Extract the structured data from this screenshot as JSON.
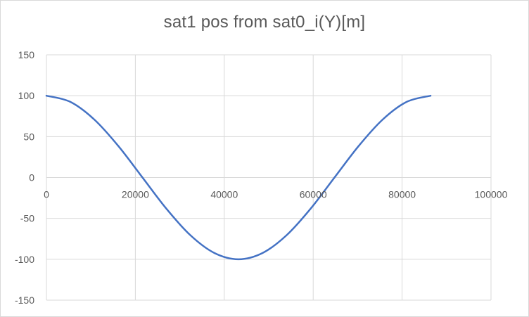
{
  "chart_data": {
    "type": "line",
    "title": "sat1 pos from sat0_i(Y)[m]",
    "xlim": [
      0,
      100000
    ],
    "ylim": [
      -150,
      150
    ],
    "x_ticks": [
      0,
      20000,
      40000,
      60000,
      80000,
      100000
    ],
    "x_tick_labels": [
      "0",
      "20000",
      "40000",
      "60000",
      "80000",
      "100000"
    ],
    "y_ticks": [
      150,
      100,
      50,
      0,
      -50,
      -100,
      -150
    ],
    "y_tick_labels": [
      "150",
      "100",
      "50",
      "0",
      "-50",
      "-100",
      "-150"
    ],
    "grid": true,
    "series": [
      {
        "color": "#4472c4",
        "x": [
          0,
          5400,
          10800,
          16200,
          21600,
          27000,
          32400,
          37800,
          43200,
          48600,
          54000,
          59400,
          64800,
          70200,
          75600,
          81000,
          86400
        ],
        "y": [
          100,
          92.4,
          70.7,
          38.3,
          0,
          -38.3,
          -70.7,
          -92.4,
          -100,
          -92.4,
          -70.7,
          -38.3,
          0,
          38.3,
          70.7,
          92.4,
          100
        ]
      }
    ]
  }
}
